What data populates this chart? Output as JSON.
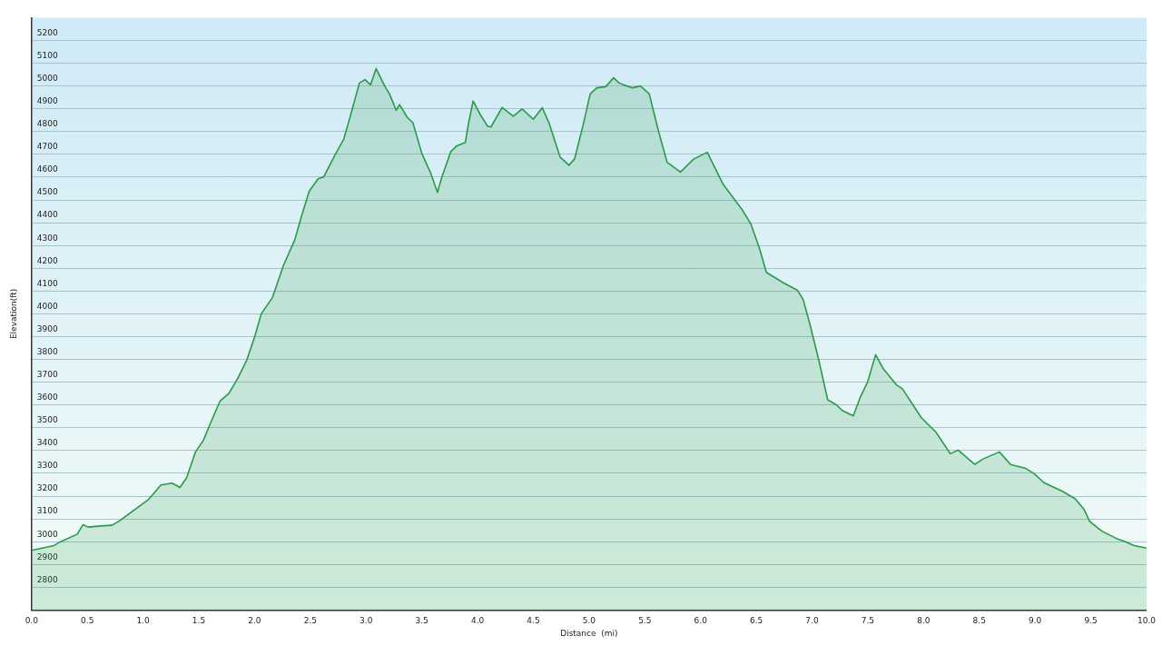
{
  "chart_data": {
    "type": "area",
    "xlabel": "Distance  (mi)",
    "ylabel": "Elevation(ft)",
    "x": [
      0,
      0.2,
      0.26,
      0.41,
      0.46,
      0.51,
      0.62,
      0.72,
      0.79,
      0.92,
      1.05,
      1.16,
      1.26,
      1.33,
      1.39,
      1.47,
      1.54,
      1.6,
      1.69,
      1.77,
      1.85,
      1.93,
      2.0,
      2.06,
      2.16,
      2.26,
      2.36,
      2.42,
      2.49,
      2.57,
      2.62,
      2.72,
      2.8,
      2.86,
      2.94,
      2.99,
      3.04,
      3.09,
      3.17,
      3.21,
      3.27,
      3.3,
      3.37,
      3.42,
      3.5,
      3.58,
      3.64,
      3.68,
      3.76,
      3.81,
      3.89,
      3.92,
      3.96,
      4.02,
      4.09,
      4.12,
      4.22,
      4.25,
      4.32,
      4.4,
      4.5,
      4.58,
      4.64,
      4.74,
      4.82,
      4.87,
      4.95,
      5.01,
      5.07,
      5.15,
      5.22,
      5.27,
      5.31,
      5.39,
      5.46,
      5.54,
      5.62,
      5.7,
      5.82,
      5.94,
      6.06,
      6.2,
      6.37,
      6.45,
      6.53,
      6.59,
      6.75,
      6.87,
      6.92,
      6.98,
      7.06,
      7.14,
      7.22,
      7.27,
      7.37,
      7.43,
      7.5,
      7.57,
      7.64,
      7.76,
      7.81,
      7.98,
      8.11,
      8.24,
      8.31,
      8.46,
      8.53,
      8.68,
      8.78,
      8.91,
      8.99,
      9.08,
      9.25,
      9.36,
      9.44,
      9.49,
      9.6,
      9.73,
      9.8,
      9.89,
      9.97,
      10.0
    ],
    "series": [
      {
        "color": "#2a9a48",
        "values": [
          2962,
          2983,
          3000,
          3033,
          3074,
          3064,
          3069,
          3072,
          3092,
          3139,
          3186,
          3249,
          3257,
          3238,
          3280,
          3394,
          3444,
          3515,
          3617,
          3651,
          3718,
          3797,
          3898,
          4000,
          4071,
          4214,
          4324,
          4427,
          4538,
          4593,
          4601,
          4696,
          4767,
          4870,
          5013,
          5028,
          5005,
          5076,
          4997,
          4965,
          4894,
          4918,
          4862,
          4839,
          4704,
          4617,
          4533,
          4601,
          4712,
          4736,
          4752,
          4839,
          4934,
          4878,
          4823,
          4820,
          4905,
          4894,
          4867,
          4899,
          4854,
          4905,
          4839,
          4688,
          4652,
          4680,
          4835,
          4965,
          4992,
          4997,
          5036,
          5013,
          5005,
          4992,
          5000,
          4965,
          4807,
          4665,
          4622,
          4680,
          4709,
          4570,
          4459,
          4396,
          4285,
          4182,
          4134,
          4103,
          4063,
          3956,
          3797,
          3623,
          3600,
          3576,
          3552,
          3631,
          3703,
          3821,
          3758,
          3687,
          3671,
          3544,
          3481,
          3386,
          3402,
          3339,
          3362,
          3394,
          3339,
          3323,
          3299,
          3259,
          3220,
          3188,
          3141,
          3089,
          3046,
          3014,
          3002,
          2983,
          2975,
          2972
        ]
      }
    ],
    "xlim": [
      0,
      10
    ],
    "xticks": [
      {
        "value": 0,
        "label": "0.0"
      },
      0.5,
      {
        "value": 1,
        "label": "1.0"
      },
      1.5,
      {
        "value": 2,
        "label": "2.0"
      },
      2.5,
      {
        "value": 3,
        "label": "3.0"
      },
      3.5,
      {
        "value": 4,
        "label": "4.0"
      },
      4.5,
      {
        "value": 5,
        "label": "5.0"
      },
      5.5,
      {
        "value": 6,
        "label": "6.0"
      },
      6.5,
      {
        "value": 7,
        "label": "7.0"
      },
      7.5,
      {
        "value": 8,
        "label": "8.0"
      },
      8.5,
      {
        "value": 9,
        "label": "9.0"
      },
      9.5,
      {
        "value": 10,
        "label": "10.0"
      }
    ],
    "ylim": [
      2700,
      5300
    ],
    "yticks": [
      2800,
      2900,
      3000,
      3100,
      3200,
      3300,
      3400,
      3500,
      3600,
      3700,
      3800,
      3900,
      4000,
      4100,
      4200,
      4300,
      4400,
      4500,
      4600,
      4700,
      4800,
      4900,
      5000,
      5100,
      5200
    ],
    "grid": "y",
    "legend": false
  }
}
